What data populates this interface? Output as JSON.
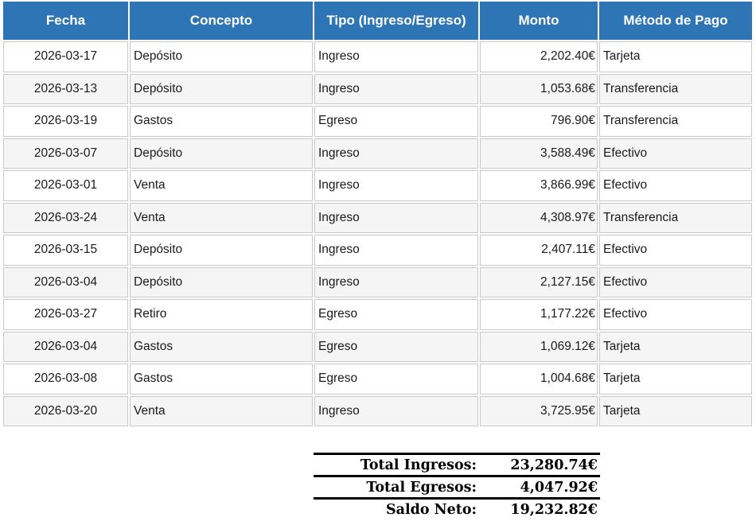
{
  "chart_data": {
    "type": "table",
    "title": "",
    "columns": [
      "Fecha",
      "Concepto",
      "Tipo (Ingreso/Egreso)",
      "Monto",
      "Método de Pago"
    ],
    "rows": [
      [
        "2026-03-17",
        "Depósito",
        "Ingreso",
        "2,202.40€",
        "Tarjeta"
      ],
      [
        "2026-03-13",
        "Depósito",
        "Ingreso",
        "1,053.68€",
        "Transferencia"
      ],
      [
        "2026-03-19",
        "Gastos",
        "Egreso",
        "796.90€",
        "Transferencia"
      ],
      [
        "2026-03-07",
        "Depósito",
        "Ingreso",
        "3,588.49€",
        "Efectivo"
      ],
      [
        "2026-03-01",
        "Venta",
        "Ingreso",
        "3,866.99€",
        "Efectivo"
      ],
      [
        "2026-03-24",
        "Venta",
        "Ingreso",
        "4,308.97€",
        "Transferencia"
      ],
      [
        "2026-03-15",
        "Depósito",
        "Ingreso",
        "2,407.11€",
        "Efectivo"
      ],
      [
        "2026-03-04",
        "Depósito",
        "Ingreso",
        "2,127.15€",
        "Efectivo"
      ],
      [
        "2026-03-27",
        "Retiro",
        "Egreso",
        "1,177.22€",
        "Efectivo"
      ],
      [
        "2026-03-04",
        "Gastos",
        "Egreso",
        "1,069.12€",
        "Tarjeta"
      ],
      [
        "2026-03-08",
        "Gastos",
        "Egreso",
        "1,004.68€",
        "Tarjeta"
      ],
      [
        "2026-03-20",
        "Venta",
        "Ingreso",
        "3,725.95€",
        "Tarjeta"
      ]
    ],
    "summary": {
      "total_ingresos": "23,280.74€",
      "total_egresos": "4,047.92€",
      "saldo_neto": "19,232.82€"
    }
  },
  "table": {
    "columns": [
      {
        "label": "Fecha"
      },
      {
        "label": "Concepto"
      },
      {
        "label": "Tipo (Ingreso/Egreso)"
      },
      {
        "label": "Monto"
      },
      {
        "label": "Método de Pago"
      }
    ]
  },
  "summary": {
    "rows": [
      {
        "label": "Total Ingresos:",
        "value": "23,280.74€"
      },
      {
        "label": "Total Egresos:",
        "value": "4,047.92€"
      },
      {
        "label": "Saldo Neto:",
        "value": "19,232.82€"
      }
    ]
  },
  "colors": {
    "header_bg": "#2E75B6",
    "header_text": "#FFFFFF",
    "row_bg": "#FFFFFF",
    "row_alt_bg": "#F5F5F5",
    "cell_border": "#C9C9C9",
    "summary_rule": "#000000",
    "body_text": "#1A1A1A"
  }
}
